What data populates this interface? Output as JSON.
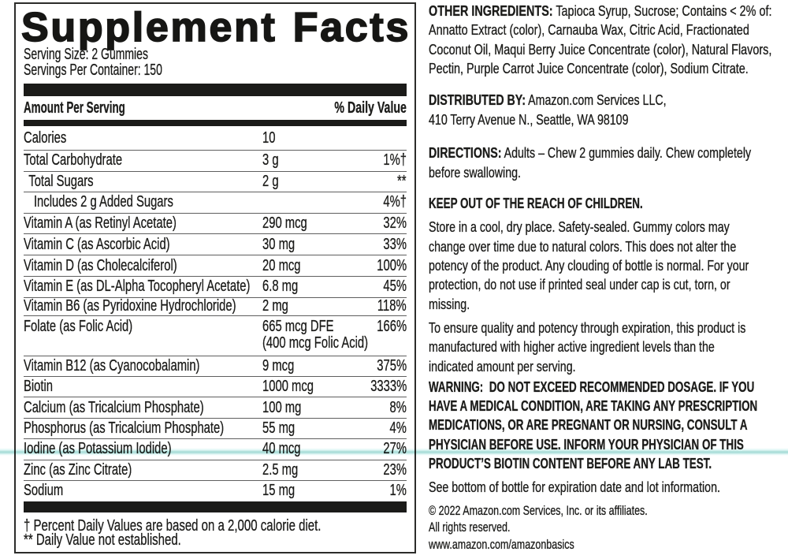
{
  "panel": {
    "title": "Supplement Facts",
    "serving_lines": [
      "Serving Size: 2 Gummies",
      "Servings Per Container: 150"
    ],
    "header": {
      "amount": "Amount Per Serving",
      "daily_value": "% Daily Value"
    },
    "rows": [
      {
        "name": "Calories",
        "amount": "10",
        "dv": "",
        "indent": 0
      },
      {
        "name": "Total Carbohydrate",
        "amount": "3 g",
        "dv": "1%†",
        "indent": 0
      },
      {
        "name": "Total Sugars",
        "amount": "2 g",
        "dv": "**",
        "indent": 1
      },
      {
        "name": "Includes 2 g Added Sugars",
        "amount": "",
        "dv": "4%†",
        "indent": 2
      },
      {
        "name": "Vitamin A (as Retinyl Acetate)",
        "amount": "290 mcg",
        "dv": "32%",
        "indent": 0
      },
      {
        "name": "Vitamin C (as Ascorbic Acid)",
        "amount": "30 mg",
        "dv": "33%",
        "indent": 0
      },
      {
        "name": "Vitamin D (as Cholecalciferol)",
        "amount": "20 mcg",
        "dv": "100%",
        "indent": 0
      },
      {
        "name": "Vitamin E (as DL-Alpha Tocopheryl Acetate)",
        "amount": "6.8 mg",
        "dv": "45%",
        "indent": 0
      },
      {
        "name": "Vitamin B6 (as Pyridoxine Hydrochloride)",
        "amount": "2 mg",
        "dv": "118%",
        "indent": 0
      },
      {
        "name": "Folate (as Folic Acid)",
        "amount": [
          "665 mcg DFE",
          "(400 mcg Folic Acid)"
        ],
        "dv": "166%",
        "indent": 0
      },
      {
        "name": "Vitamin B12 (as Cyanocobalamin)",
        "amount": "9 mcg",
        "dv": "375%",
        "indent": 0
      },
      {
        "name": "Biotin",
        "amount": "1000 mcg",
        "dv": "3333%",
        "indent": 0
      },
      {
        "name": "Calcium (as Tricalcium Phosphate)",
        "amount": "100 mg",
        "dv": "8%",
        "indent": 0
      },
      {
        "name": "Phosphorus (as Tricalcium Phosphate)",
        "amount": "55 mg",
        "dv": "4%",
        "indent": 0
      },
      {
        "name": "Iodine (as Potassium Iodide)",
        "amount": "40 mcg",
        "dv": "27%",
        "indent": 0
      },
      {
        "name": "Zinc (as Zinc Citrate)",
        "amount": "2.5 mg",
        "dv": "23%",
        "indent": 0
      },
      {
        "name": "Sodium",
        "amount": "15 mg",
        "dv": "1%",
        "indent": 0
      }
    ],
    "footnotes": [
      "† Percent Daily Values are based on a 2,000 calorie diet.",
      "** Daily Value not established."
    ]
  },
  "info": {
    "paragraphs": [
      {
        "bold": "OTHER INGREDIENTS:",
        "lines": [
          " Tapioca Syrup, Sucrose; Contains < 2% of:",
          "Annatto Extract (color), Carnauba Wax, Citric Acid, Fractionated",
          "Coconut Oil, Maqui Berry Juice Concentrate (color), Natural Flavors,",
          "Pectin, Purple Carrot Juice Concentrate (color), Sodium Citrate."
        ]
      },
      {
        "bold": "DISTRIBUTED BY:",
        "lines": [
          " Amazon.com Services LLC,",
          "410 Terry Avenue N., Seattle, WA 98109"
        ]
      },
      {
        "bold": "DIRECTIONS:",
        "lines": [
          " Adults – Chew 2 gummies daily. Chew completely",
          "before swallowing."
        ]
      },
      {
        "bold": "",
        "lines": [
          "KEEP OUT OF THE REACH OF CHILDREN."
        ]
      },
      {
        "bold": "",
        "lines": [
          "Store in a cool, dry place. Safety-sealed. Gummy colors may",
          "change over time due to natural colors. This does not alter the",
          "potency of the product. Any clouding of bottle is normal. For your",
          "protection, do not use if printed seal under cap is cut, torn, or",
          "missing."
        ]
      },
      {
        "bold": "",
        "lines": [
          "To ensure quality and potency through expiration, this product is",
          "manufactured with higher active ingredient levels than the",
          "indicated amount per serving."
        ]
      },
      {
        "bold": "",
        "lines": [
          "WARNING:  DO NOT EXCEED RECOMMENDED DOSAGE. IF YOU",
          "HAVE A MEDICAL CONDITION, ARE TAKING ANY PRESCRIPTION",
          "MEDICATIONS, OR ARE PREGNANT OR NURSING, CONSULT A",
          "PHYSICIAN BEFORE USE. INFORM YOUR PHYSICIAN OF THIS",
          "PRODUCT’S BIOTIN CONTENT BEFORE ANY LAB TEST."
        ]
      },
      {
        "bold": "",
        "lines": [
          "See bottom of bottle for expiration date and lot information."
        ]
      },
      {
        "bold": "",
        "lines": [
          "© 2022 Amazon.com Services, Inc. or its affiliates.",
          "All rights reserved.",
          "www.amazon.com/amazonbasics"
        ]
      }
    ]
  },
  "colors": {
    "text": "#1c1c1a",
    "panel_border": "#2c2c2a",
    "bar": "#1b1b19",
    "separator": "#59595b",
    "scan_line": "#a0d9d3",
    "background": "#ffffff"
  }
}
